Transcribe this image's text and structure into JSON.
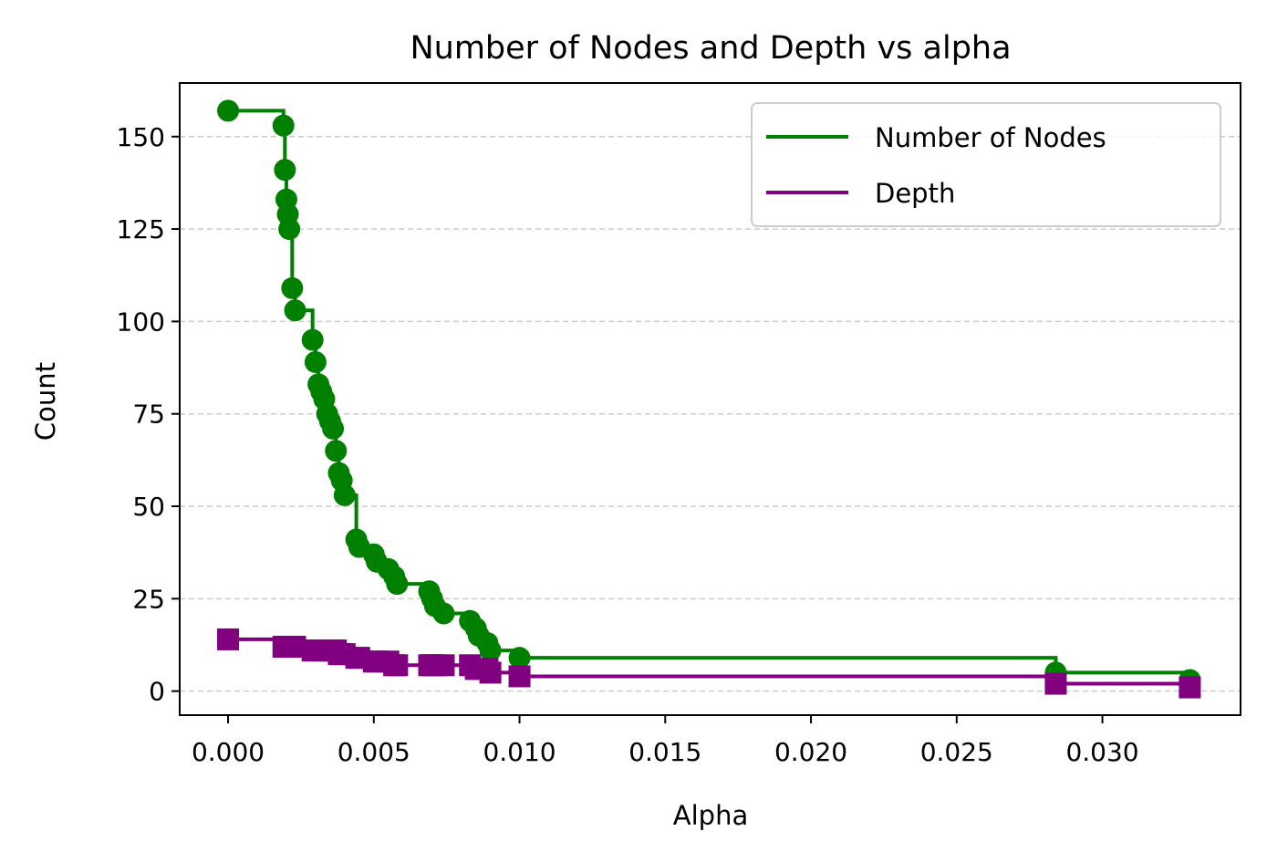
{
  "chart_data": {
    "type": "line",
    "title": "Number of Nodes and Depth vs alpha",
    "xlabel": "Alpha",
    "ylabel": "Count",
    "xlim": [
      -0.00166,
      0.03474
    ],
    "ylim": [
      -6.5,
      164.5
    ],
    "xticks": [
      "0.000",
      "0.005",
      "0.010",
      "0.015",
      "0.020",
      "0.025",
      "0.030"
    ],
    "yticks": [
      "0",
      "25",
      "50",
      "75",
      "100",
      "125",
      "150"
    ],
    "grid": "y, dashed",
    "legend_position": "top-right",
    "draw_style": "steps-post",
    "series": [
      {
        "name": "Number of Nodes",
        "color": "#008000",
        "marker": "circle",
        "x": [
          0,
          0.0019,
          0.00195,
          0.002,
          0.00205,
          0.0021,
          0.0022,
          0.0023,
          0.0029,
          0.003,
          0.0031,
          0.0032,
          0.0033,
          0.0034,
          0.0035,
          0.0036,
          0.0037,
          0.0038,
          0.0039,
          0.004,
          0.0044,
          0.0045,
          0.005,
          0.0051,
          0.0055,
          0.0057,
          0.0058,
          0.0069,
          0.007,
          0.0071,
          0.0074,
          0.0083,
          0.0085,
          0.0086,
          0.0089,
          0.009,
          0.01,
          0.0284,
          0.033
        ],
        "y": [
          157,
          153,
          141,
          133,
          129,
          125,
          109,
          103,
          95,
          89,
          83,
          81,
          79,
          75,
          73,
          71,
          65,
          59,
          57,
          53,
          41,
          39,
          37,
          35,
          33,
          31,
          29,
          27,
          25,
          23,
          21,
          19,
          17,
          15,
          13,
          11,
          9,
          5,
          3
        ]
      },
      {
        "name": "Depth",
        "color": "#800080",
        "marker": "square",
        "x": [
          0,
          0.0019,
          0.002,
          0.0021,
          0.0022,
          0.0023,
          0.0029,
          0.003,
          0.0031,
          0.0032,
          0.0033,
          0.0034,
          0.0035,
          0.0036,
          0.0037,
          0.0038,
          0.0039,
          0.004,
          0.0044,
          0.0045,
          0.005,
          0.0051,
          0.0055,
          0.0057,
          0.0058,
          0.0069,
          0.007,
          0.0071,
          0.0074,
          0.0083,
          0.0085,
          0.0086,
          0.0089,
          0.009,
          0.01,
          0.0284,
          0.033
        ],
        "y": [
          14,
          12,
          12,
          12,
          12,
          12,
          11,
          11,
          11,
          11,
          11,
          11,
          11,
          11,
          11,
          10,
          10,
          10,
          9,
          9,
          8,
          8,
          8,
          7,
          7,
          7,
          7,
          7,
          7,
          7,
          6,
          6,
          6,
          5,
          4,
          2,
          1
        ]
      }
    ]
  }
}
